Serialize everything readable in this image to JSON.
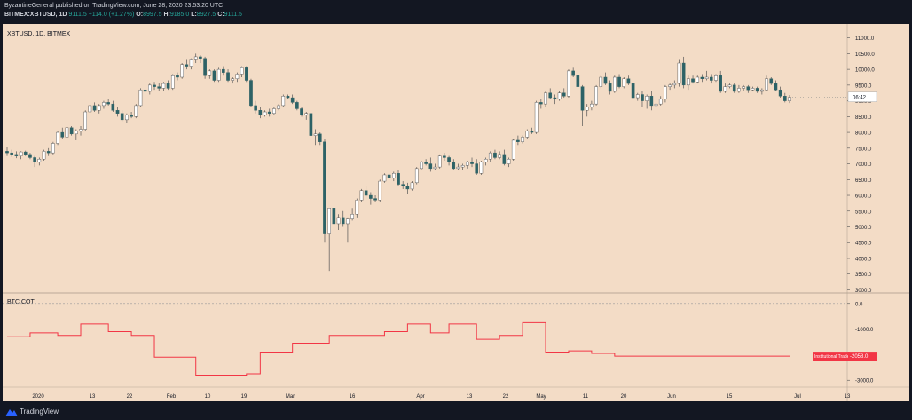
{
  "header": {
    "published_line": "ByzantineGeneral published on TradingView.com, June 28, 2020 23:53:20 UTC",
    "symbol_line": "BITMEX:XBTUSD, 1D",
    "last": "9111.5",
    "change": "+114.0 (+1.27%)",
    "o_label": "O:",
    "o_value": "8997.5",
    "h_label": "H:",
    "h_value": "9185.0",
    "l_label": "L:",
    "l_value": "8927.5",
    "c_label": "C:",
    "c_value": "9111.5"
  },
  "footer": {
    "brand": "TradingView"
  },
  "colors": {
    "background": "#f3dcc6",
    "up": "#ffffff",
    "down": "#2d6266",
    "wick": "#555555",
    "cot_line": "#f23645",
    "frame": "#131722"
  },
  "chart_data": [
    {
      "type": "candlestick",
      "title": "XBTUSD, 1D, BITMEX",
      "last_price_label": "06:42",
      "ylim": [
        2900,
        11300
      ],
      "y_ticks": [
        "11000.0",
        "10500.0",
        "10000.0",
        "9500.0",
        "9000.0",
        "8500.0",
        "8000.0",
        "7500.0",
        "7000.0",
        "6500.0",
        "6000.0",
        "5500.0",
        "5000.0",
        "4500.0",
        "4000.0",
        "3500.0",
        "3000.0"
      ],
      "x_tick_labels": [
        "2020",
        "13",
        "22",
        "Feb",
        "10",
        "19",
        "Mar",
        "16",
        "Apr",
        "13",
        "22",
        "May",
        "11",
        "20",
        "Jun",
        "15",
        "Jul",
        "13"
      ],
      "ohlc": [
        [
          7400,
          7550,
          7250,
          7350
        ],
        [
          7350,
          7450,
          7220,
          7300
        ],
        [
          7300,
          7400,
          7180,
          7250
        ],
        [
          7250,
          7400,
          7150,
          7380
        ],
        [
          7380,
          7420,
          7250,
          7300
        ],
        [
          7300,
          7350,
          7150,
          7200
        ],
        [
          7200,
          7250,
          6900,
          7050
        ],
        [
          7050,
          7200,
          6950,
          7150
        ],
        [
          7150,
          7450,
          7100,
          7400
        ],
        [
          7400,
          7500,
          7250,
          7350
        ],
        [
          7350,
          7700,
          7300,
          7650
        ],
        [
          7650,
          8050,
          7600,
          8000
        ],
        [
          8000,
          8150,
          7800,
          7850
        ],
        [
          7850,
          8200,
          7750,
          8150
        ],
        [
          8150,
          8200,
          7900,
          7950
        ],
        [
          7950,
          8100,
          7750,
          8050
        ],
        [
          8050,
          8200,
          7900,
          8100
        ],
        [
          8100,
          8700,
          8050,
          8650
        ],
        [
          8650,
          8900,
          8550,
          8850
        ],
        [
          8850,
          8950,
          8650,
          8700
        ],
        [
          8700,
          8900,
          8600,
          8850
        ],
        [
          8850,
          9000,
          8750,
          8950
        ],
        [
          8950,
          9050,
          8850,
          8900
        ],
        [
          8900,
          9000,
          8650,
          8700
        ],
        [
          8700,
          8800,
          8500,
          8600
        ],
        [
          8600,
          8700,
          8350,
          8400
        ],
        [
          8400,
          8600,
          8300,
          8550
        ],
        [
          8550,
          8650,
          8450,
          8500
        ],
        [
          8500,
          8900,
          8450,
          8850
        ],
        [
          8850,
          9400,
          8800,
          9350
        ],
        [
          9350,
          9500,
          9250,
          9300
        ],
        [
          9300,
          9550,
          9200,
          9500
        ],
        [
          9500,
          9600,
          9350,
          9450
        ],
        [
          9450,
          9550,
          9300,
          9400
        ],
        [
          9400,
          9600,
          9300,
          9550
        ],
        [
          9550,
          9650,
          9350,
          9400
        ],
        [
          9400,
          9850,
          9350,
          9800
        ],
        [
          9800,
          9900,
          9650,
          9750
        ],
        [
          9750,
          10200,
          9700,
          10150
        ],
        [
          10150,
          10300,
          10000,
          10100
        ],
        [
          10100,
          10350,
          10000,
          10300
        ],
        [
          10300,
          10500,
          10200,
          10400
        ],
        [
          10400,
          10450,
          10200,
          10350
        ],
        [
          10350,
          10400,
          9700,
          9800
        ],
        [
          9800,
          10000,
          9700,
          9950
        ],
        [
          9950,
          10000,
          9600,
          9650
        ],
        [
          9650,
          10050,
          9600,
          10000
        ],
        [
          10000,
          10100,
          9800,
          9900
        ],
        [
          9900,
          10000,
          9600,
          9650
        ],
        [
          9650,
          9750,
          9550,
          9700
        ],
        [
          9700,
          9900,
          9600,
          9850
        ],
        [
          9850,
          10100,
          9750,
          10050
        ],
        [
          10050,
          10100,
          9600,
          9650
        ],
        [
          9650,
          9700,
          8800,
          8850
        ],
        [
          8850,
          9000,
          8600,
          8700
        ],
        [
          8700,
          8800,
          8450,
          8550
        ],
        [
          8550,
          8700,
          8500,
          8650
        ],
        [
          8650,
          8750,
          8500,
          8600
        ],
        [
          8600,
          8800,
          8550,
          8750
        ],
        [
          8750,
          8900,
          8700,
          8850
        ],
        [
          8850,
          9200,
          8800,
          9150
        ],
        [
          9150,
          9200,
          9050,
          9100
        ],
        [
          9100,
          9200,
          8900,
          8950
        ],
        [
          8950,
          9000,
          8700,
          8750
        ],
        [
          8750,
          8800,
          8500,
          8550
        ],
        [
          8550,
          8650,
          8400,
          8600
        ],
        [
          8600,
          8700,
          7800,
          7900
        ],
        [
          7900,
          8100,
          7600,
          7950
        ],
        [
          7950,
          8000,
          7600,
          7700
        ],
        [
          7700,
          7800,
          4500,
          4800
        ],
        [
          4800,
          5600,
          3600,
          5600
        ],
        [
          5600,
          5700,
          5000,
          5100
        ],
        [
          5100,
          5400,
          4900,
          5300
        ],
        [
          5300,
          5500,
          5000,
          5100
        ],
        [
          5100,
          5300,
          4500,
          5250
        ],
        [
          5250,
          5600,
          5200,
          5400
        ],
        [
          5400,
          5900,
          5300,
          5850
        ],
        [
          5850,
          6200,
          5800,
          6150
        ],
        [
          6150,
          6300,
          5900,
          6000
        ],
        [
          6000,
          6100,
          5700,
          5900
        ],
        [
          5900,
          6000,
          5800,
          5850
        ],
        [
          5850,
          6500,
          5800,
          6450
        ],
        [
          6450,
          6700,
          6400,
          6650
        ],
        [
          6650,
          6800,
          6500,
          6550
        ],
        [
          6550,
          6750,
          6450,
          6700
        ],
        [
          6700,
          6800,
          6300,
          6350
        ],
        [
          6350,
          6450,
          6200,
          6300
        ],
        [
          6300,
          6400,
          6050,
          6200
        ],
        [
          6200,
          6450,
          6150,
          6400
        ],
        [
          6400,
          6900,
          6350,
          6850
        ],
        [
          6850,
          7100,
          6800,
          7050
        ],
        [
          7050,
          7150,
          6950,
          7000
        ],
        [
          7000,
          7200,
          6750,
          6850
        ],
        [
          6850,
          7000,
          6800,
          6900
        ],
        [
          6900,
          7300,
          6850,
          7250
        ],
        [
          7250,
          7350,
          7100,
          7200
        ],
        [
          7200,
          7250,
          6950,
          7050
        ],
        [
          7050,
          7150,
          6800,
          6850
        ],
        [
          6850,
          7000,
          6800,
          6900
        ],
        [
          6900,
          7000,
          6800,
          6950
        ],
        [
          6950,
          7100,
          6850,
          7050
        ],
        [
          7050,
          7200,
          6900,
          7000
        ],
        [
          7000,
          7150,
          6650,
          6700
        ],
        [
          6700,
          7100,
          6650,
          7050
        ],
        [
          7050,
          7200,
          6950,
          7150
        ],
        [
          7150,
          7400,
          7050,
          7350
        ],
        [
          7350,
          7450,
          7150,
          7200
        ],
        [
          7200,
          7400,
          7150,
          7300
        ],
        [
          7300,
          7450,
          6950,
          7000
        ],
        [
          7000,
          7200,
          6900,
          7150
        ],
        [
          7150,
          7800,
          7100,
          7750
        ],
        [
          7750,
          7900,
          7600,
          7700
        ],
        [
          7700,
          7900,
          7650,
          7850
        ],
        [
          7850,
          8100,
          7800,
          8050
        ],
        [
          8050,
          8150,
          7950,
          8000
        ],
        [
          8000,
          9000,
          7950,
          8950
        ],
        [
          8950,
          9050,
          8750,
          8900
        ],
        [
          8900,
          9300,
          8800,
          9250
        ],
        [
          9250,
          9400,
          9050,
          9100
        ],
        [
          9100,
          9200,
          8900,
          9050
        ],
        [
          9050,
          9300,
          9000,
          9250
        ],
        [
          9250,
          9400,
          9100,
          9150
        ],
        [
          9150,
          10000,
          9100,
          9950
        ],
        [
          9950,
          10050,
          9750,
          9800
        ],
        [
          9800,
          9900,
          9400,
          9450
        ],
        [
          9450,
          9500,
          8200,
          8700
        ],
        [
          8700,
          8900,
          8500,
          8800
        ],
        [
          8800,
          9000,
          8700,
          8900
        ],
        [
          8900,
          9500,
          8850,
          9450
        ],
        [
          9450,
          9800,
          9400,
          9750
        ],
        [
          9750,
          9900,
          9500,
          9550
        ],
        [
          9550,
          9650,
          9200,
          9300
        ],
        [
          9300,
          9800,
          9250,
          9750
        ],
        [
          9750,
          9850,
          9400,
          9450
        ],
        [
          9450,
          9750,
          9400,
          9700
        ],
        [
          9700,
          9800,
          9500,
          9550
        ],
        [
          9550,
          9650,
          9000,
          9100
        ],
        [
          9100,
          9250,
          9000,
          9200
        ],
        [
          9200,
          9300,
          8800,
          9000
        ],
        [
          9000,
          9200,
          8750,
          9150
        ],
        [
          9150,
          9300,
          8700,
          8850
        ],
        [
          8850,
          9000,
          8750,
          8900
        ],
        [
          8900,
          9150,
          8850,
          9050
        ],
        [
          9050,
          9500,
          8950,
          9450
        ],
        [
          9450,
          9550,
          9350,
          9500
        ],
        [
          9500,
          9650,
          9400,
          9550
        ],
        [
          9550,
          10300,
          9450,
          10200
        ],
        [
          10200,
          10400,
          9400,
          9500
        ],
        [
          9500,
          9800,
          9350,
          9700
        ],
        [
          9700,
          9800,
          9550,
          9600
        ],
        [
          9600,
          9800,
          9550,
          9750
        ],
        [
          9750,
          9850,
          9600,
          9700
        ],
        [
          9700,
          9950,
          9650,
          9750
        ],
        [
          9750,
          9850,
          9550,
          9650
        ],
        [
          9650,
          9850,
          9600,
          9800
        ],
        [
          9800,
          9950,
          9250,
          9300
        ],
        [
          9300,
          9550,
          9250,
          9450
        ],
        [
          9450,
          9550,
          9400,
          9500
        ],
        [
          9500,
          9550,
          9250,
          9300
        ],
        [
          9300,
          9500,
          9250,
          9400
        ],
        [
          9400,
          9500,
          9300,
          9450
        ],
        [
          9450,
          9500,
          9250,
          9350
        ],
        [
          9350,
          9450,
          9300,
          9400
        ],
        [
          9400,
          9450,
          9250,
          9300
        ],
        [
          9300,
          9400,
          9200,
          9350
        ],
        [
          9350,
          9800,
          9300,
          9700
        ],
        [
          9700,
          9750,
          9500,
          9550
        ],
        [
          9550,
          9650,
          9300,
          9350
        ],
        [
          9350,
          9450,
          9100,
          9150
        ],
        [
          9150,
          9250,
          8950,
          9000
        ],
        [
          8997.5,
          9185,
          8927.5,
          9111.5
        ]
      ]
    },
    {
      "type": "line",
      "title": "BTC COT",
      "ylim": [
        -3200,
        200
      ],
      "y_ticks": [
        "0.0",
        "-1000.0",
        "-2000.0",
        "-3000.0"
      ],
      "series": [
        {
          "name": "Institutional Trader Net",
          "last_value": "-2058.0",
          "steps": [
            [
              0,
              -1300
            ],
            [
              5,
              -1150
            ],
            [
              11,
              -1250
            ],
            [
              16,
              -800
            ],
            [
              22,
              -1100
            ],
            [
              27,
              -1250
            ],
            [
              32,
              -2100
            ],
            [
              41,
              -2800
            ],
            [
              52,
              -2750
            ],
            [
              55,
              -1900
            ],
            [
              62,
              -1550
            ],
            [
              70,
              -1250
            ],
            [
              82,
              -1100
            ],
            [
              87,
              -800
            ],
            [
              92,
              -1150
            ],
            [
              96,
              -800
            ],
            [
              102,
              -1400
            ],
            [
              107,
              -1250
            ],
            [
              112,
              -750
            ],
            [
              117,
              -1900
            ],
            [
              122,
              -1850
            ],
            [
              127,
              -1950
            ],
            [
              132,
              -2058
            ]
          ]
        }
      ]
    }
  ]
}
